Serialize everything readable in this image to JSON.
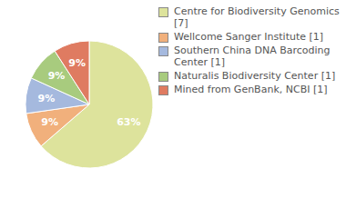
{
  "chart_data": {
    "type": "pie",
    "categories": [
      "Centre for Biodiversity Genomics [7]",
      "Wellcome Sanger Institute [1]",
      "Southern China DNA Barcoding Center [1]",
      "Naturalis Biodiversity Center [1]",
      "Mined from GenBank, NCBI [1]"
    ],
    "values": [
      63,
      9,
      9,
      9,
      9
    ],
    "value_labels": [
      "63%",
      "9%",
      "9%",
      "9%",
      "9%"
    ],
    "data_labels": true,
    "colors": [
      "#dde39c",
      "#f1b07c",
      "#a5b9de",
      "#a8cb7e",
      "#df7b61"
    ],
    "legend": "upper right"
  }
}
